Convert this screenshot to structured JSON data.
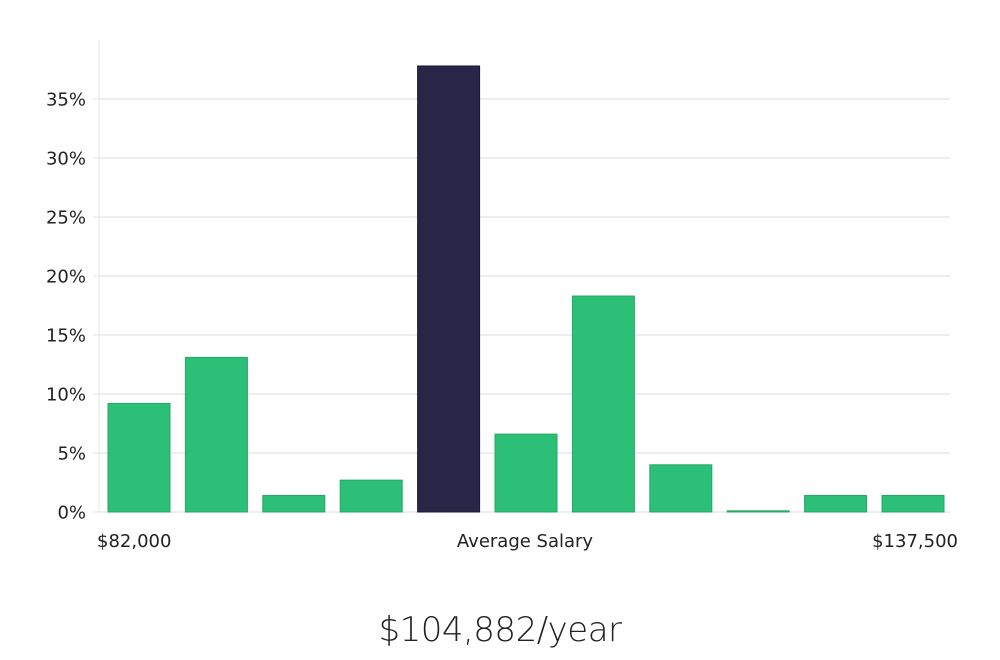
{
  "chart_data": {
    "type": "bar",
    "values": [
      9.2,
      13.1,
      1.4,
      2.7,
      37.8,
      6.6,
      18.3,
      4.0,
      0.1,
      1.4,
      1.4
    ],
    "highlight_index": 4,
    "ylim": [
      0,
      40
    ],
    "yticks": [
      0,
      5,
      10,
      15,
      20,
      25,
      30,
      35
    ],
    "ytick_labels": [
      "0%",
      "5%",
      "10%",
      "15%",
      "20%",
      "25%",
      "30%",
      "35%"
    ],
    "x_left_label": "$82,000",
    "x_center_label": "Average Salary",
    "x_right_label": "$137,500",
    "bar_color": "#2bbf78",
    "bar_border": "#25a866",
    "highlight_color": "#282646",
    "grid": true
  },
  "average_salary": "$104,882/year"
}
